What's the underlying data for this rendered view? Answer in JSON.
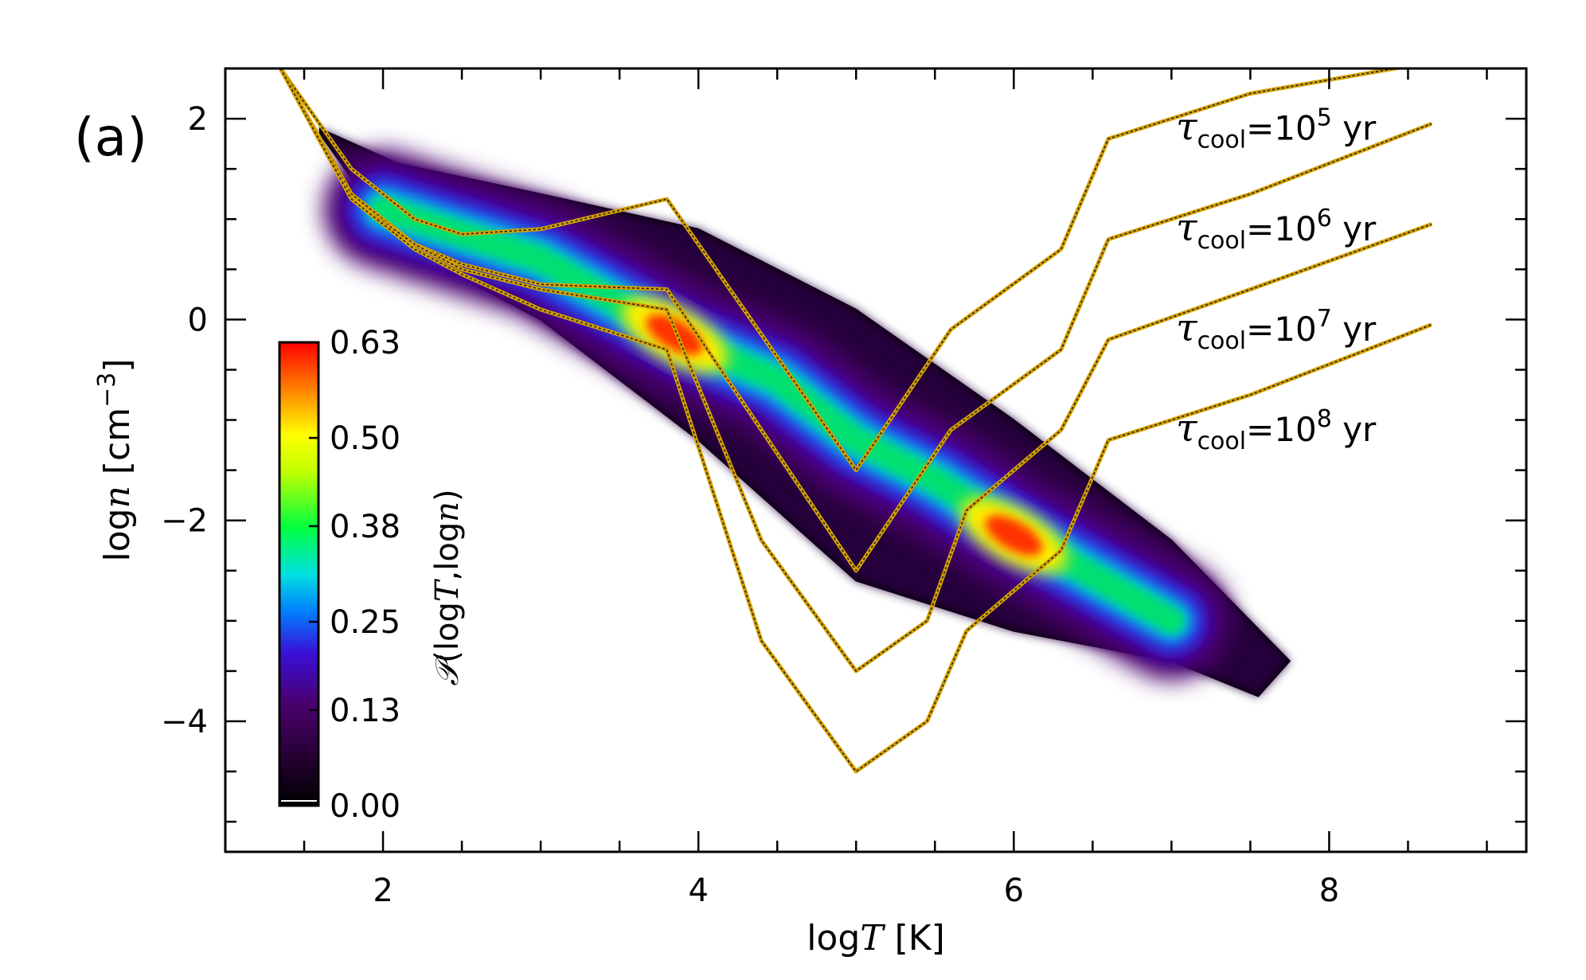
{
  "panel_label": "(a)",
  "chart_data": {
    "type": "heatmap",
    "title": "",
    "xlabel": {
      "prefix": "log",
      "var": "T",
      "units": " [K]"
    },
    "ylabel": {
      "prefix": "log",
      "var": "n",
      "units": " [cm",
      "exp": "−3",
      "close": "]"
    },
    "xlim": [
      1.0,
      9.25
    ],
    "ylim": [
      -5.3,
      2.5
    ],
    "xticks": [
      2,
      4,
      6,
      8
    ],
    "xtick_labels": [
      "2",
      "4",
      "6",
      "8"
    ],
    "xminor_step": 0.5,
    "yticks": [
      -4,
      -2,
      0,
      2
    ],
    "ytick_labels": [
      "−4",
      "−2",
      "0",
      "2"
    ],
    "yminor_step": 0.5,
    "colorbar": {
      "label": "𝒫(logT,logn)",
      "label_parts": {
        "script": "𝒫",
        "open": "(log",
        "T": "T",
        "comma": ",log",
        "n": "n",
        "close": ")"
      },
      "ticks": [
        0.0,
        0.13,
        0.25,
        0.38,
        0.5,
        0.63
      ],
      "tick_labels": [
        "0.00",
        "0.13",
        "0.25",
        "0.38",
        "0.50",
        "0.63"
      ],
      "vmin": 0.0,
      "vmax": 0.63,
      "colors": [
        "#000000",
        "#4a006e",
        "#3a10d8",
        "#00c0ff",
        "#00ff40",
        "#ffff00",
        "#ff8000",
        "#ff0000"
      ]
    },
    "density_band": {
      "description_free": true,
      "upper_edge": [
        [
          1.6,
          1.9
        ],
        [
          2.1,
          1.55
        ],
        [
          3.0,
          1.25
        ],
        [
          4.0,
          0.9
        ],
        [
          5.0,
          0.1
        ],
        [
          6.0,
          -1.0
        ],
        [
          7.0,
          -2.2
        ],
        [
          7.75,
          -3.4
        ]
      ],
      "lower_edge": [
        [
          1.6,
          1.85
        ],
        [
          2.1,
          0.75
        ],
        [
          3.0,
          0.0
        ],
        [
          4.0,
          -1.2
        ],
        [
          5.0,
          -2.6
        ],
        [
          6.0,
          -3.1
        ],
        [
          7.0,
          -3.4
        ],
        [
          7.55,
          -3.75
        ]
      ],
      "ridge": [
        [
          2.0,
          1.1
        ],
        [
          3.0,
          0.6
        ],
        [
          3.9,
          -0.2
        ],
        [
          4.5,
          -0.6
        ],
        [
          5.0,
          -1.2
        ],
        [
          5.5,
          -1.6
        ],
        [
          6.0,
          -2.1
        ],
        [
          6.5,
          -2.55
        ],
        [
          7.0,
          -3.0
        ]
      ],
      "peaks": [
        {
          "x": 3.85,
          "y": -0.15,
          "value": 0.63
        },
        {
          "x": 6.0,
          "y": -2.15,
          "value": 0.6
        }
      ]
    },
    "series": [
      {
        "name": "τcool=10^5 yr",
        "label_base": "τ",
        "label_sub": "cool",
        "label_mid": "=10",
        "label_exp": "5",
        "label_unit": " yr",
        "x": [
          1.35,
          1.8,
          2.2,
          2.5,
          3.0,
          3.8,
          5.0,
          5.6,
          6.3,
          6.6,
          7.5,
          8.6
        ],
        "y": [
          2.5,
          1.5,
          1.0,
          0.85,
          0.9,
          1.2,
          -1.5,
          -0.1,
          0.7,
          1.8,
          2.25,
          2.55
        ]
      },
      {
        "name": "τcool=10^6 yr",
        "label_base": "τ",
        "label_sub": "cool",
        "label_mid": "=10",
        "label_exp": "6",
        "label_unit": " yr",
        "x": [
          1.35,
          1.8,
          2.2,
          2.5,
          3.0,
          3.8,
          5.0,
          5.6,
          6.3,
          6.6,
          7.5,
          8.65
        ],
        "y": [
          2.5,
          1.25,
          0.75,
          0.55,
          0.35,
          0.3,
          -2.5,
          -1.1,
          -0.3,
          0.8,
          1.25,
          1.95
        ]
      },
      {
        "name": "τcool=10^7 yr",
        "label_base": "τ",
        "label_sub": "cool",
        "label_mid": "=10",
        "label_exp": "7",
        "label_unit": " yr",
        "x": [
          1.35,
          1.8,
          2.2,
          2.5,
          3.0,
          3.8,
          4.4,
          5.0,
          5.45,
          5.7,
          6.3,
          6.6,
          7.5,
          8.65
        ],
        "y": [
          2.5,
          1.2,
          0.75,
          0.5,
          0.3,
          0.1,
          -2.2,
          -3.5,
          -3.0,
          -1.9,
          -1.1,
          -0.2,
          0.3,
          0.95
        ]
      },
      {
        "name": "τcool=10^8 yr",
        "label_base": "τ",
        "label_sub": "cool",
        "label_mid": "=10",
        "label_exp": "8",
        "label_unit": " yr",
        "x": [
          1.35,
          1.8,
          2.2,
          2.5,
          3.0,
          3.8,
          4.4,
          5.0,
          5.45,
          5.7,
          6.3,
          6.6,
          7.5,
          8.65
        ],
        "y": [
          2.5,
          1.2,
          0.7,
          0.45,
          0.1,
          -0.3,
          -3.2,
          -4.5,
          -4.0,
          -3.1,
          -2.3,
          -1.2,
          -0.75,
          -0.05
        ]
      }
    ]
  }
}
